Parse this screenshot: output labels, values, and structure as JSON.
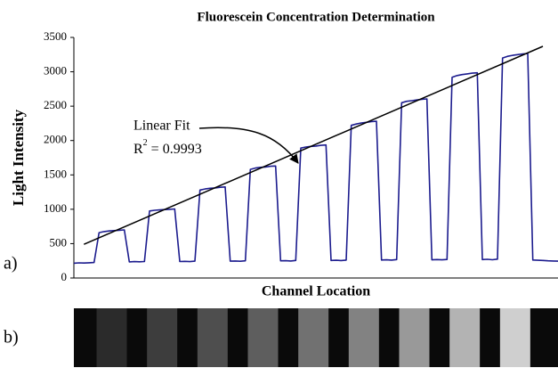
{
  "chart_data": {
    "type": "line",
    "title": "Fluorescein Concentration Determination",
    "y_label": "Light Intensity",
    "x_label": "Channel Location",
    "panel_labels": [
      "a)",
      "b)"
    ],
    "annotation": [
      "Linear Fit",
      "R",
      "2",
      "= 0.9993"
    ],
    "ylim": [
      0,
      3500
    ],
    "yticks": [
      0,
      500,
      1000,
      1500,
      2000,
      2500,
      3000,
      3500
    ],
    "series": [
      {
        "color": "#1c1c8e",
        "values": [
          215,
          220,
          218,
          222,
          225,
          660,
          675,
          685,
          690,
          695,
          700,
          235,
          238,
          236,
          240,
          975,
          985,
          990,
          995,
          1000,
          1005,
          240,
          242,
          238,
          245,
          1280,
          1295,
          1305,
          1310,
          1320,
          1325,
          245,
          248,
          244,
          250,
          1580,
          1600,
          1610,
          1615,
          1625,
          1630,
          250,
          252,
          248,
          255,
          1890,
          1905,
          1915,
          1920,
          1930,
          1935,
          255,
          258,
          254,
          260,
          2220,
          2240,
          2255,
          2265,
          2275,
          2280,
          262,
          265,
          260,
          268,
          2550,
          2570,
          2580,
          2590,
          2600,
          2605,
          265,
          268,
          264,
          270,
          2920,
          2945,
          2960,
          2970,
          2980,
          2985,
          268,
          272,
          266,
          275,
          3200,
          3225,
          3240,
          3250,
          3260,
          3265,
          262,
          258,
          255,
          250,
          248,
          245
        ]
      },
      {
        "color": "#000000",
        "x": [
          2,
          93
        ],
        "values": [
          490,
          3370
        ]
      }
    ]
  }
}
